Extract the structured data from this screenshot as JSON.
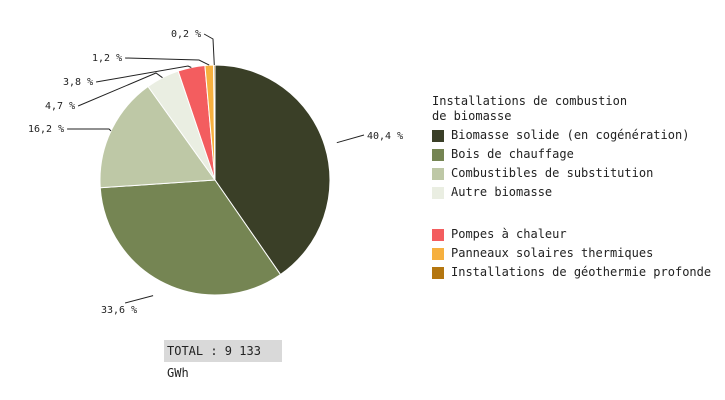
{
  "chart_data": {
    "type": "pie",
    "unit_suffix": " %",
    "slices": [
      {
        "group": 0,
        "value": 40.4,
        "label": "40,4",
        "color": "#3a3f27"
      },
      {
        "group": 0,
        "value": 33.6,
        "label": "33,6",
        "color": "#758553"
      },
      {
        "group": 0,
        "value": 16.2,
        "label": "16,2",
        "color": "#bec8a6"
      },
      {
        "group": 0,
        "value": 4.7,
        "label": "4,7",
        "color": "#eaeee2"
      },
      {
        "group": 1,
        "value": 3.8,
        "label": "3,8",
        "color": "#f35d5f"
      },
      {
        "group": 1,
        "value": 1.2,
        "label": "1,2",
        "color": "#f6b03f"
      },
      {
        "group": 1,
        "value": 0.2,
        "label": "0,2",
        "color": "#b4760f"
      }
    ],
    "legend": {
      "title": "Installations de combustion\nde biomasse",
      "groups": [
        [
          {
            "name": "Biomasse solide (en cogénération)",
            "color": "#3a3f27"
          },
          {
            "name": "Bois de chauffage",
            "color": "#758553"
          },
          {
            "name": "Combustibles de substitution",
            "color": "#bec8a6"
          },
          {
            "name": "Autre biomasse",
            "color": "#eaeee2"
          }
        ],
        [
          {
            "name": "Pompes à chaleur",
            "color": "#f35d5f"
          },
          {
            "name": "Panneaux solaires thermiques",
            "color": "#f6b03f"
          },
          {
            "name": "Installations de géothermie profonde",
            "color": "#b4760f"
          }
        ]
      ]
    },
    "total": "TOTAL : 9 133 GWh"
  }
}
